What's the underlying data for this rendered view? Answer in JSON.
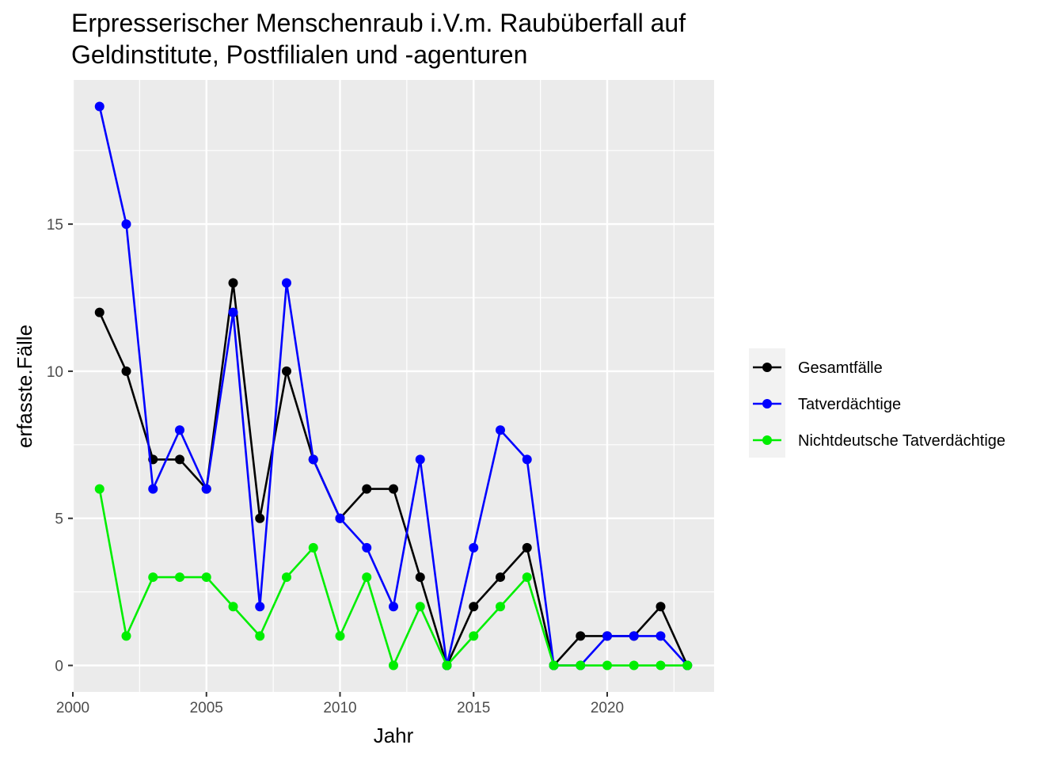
{
  "chart_data": {
    "type": "line",
    "title_lines": [
      "Erpresserischer Menschenraub i.V.m. Raubüberfall auf",
      "Geldinstitute, Postfilialen und -agenturen"
    ],
    "xlabel": "Jahr",
    "ylabel": "erfasste.Fälle",
    "x": [
      2001,
      2002,
      2003,
      2004,
      2005,
      2006,
      2007,
      2008,
      2009,
      2010,
      2011,
      2012,
      2013,
      2014,
      2015,
      2016,
      2017,
      2018,
      2019,
      2020,
      2021,
      2022,
      2023
    ],
    "series": [
      {
        "name": "Gesamtfälle",
        "color": "#000000",
        "values": [
          12,
          10,
          7,
          7,
          6,
          13,
          5,
          10,
          7,
          5,
          6,
          6,
          3,
          0,
          2,
          3,
          4,
          0,
          1,
          1,
          1,
          2,
          0
        ]
      },
      {
        "name": "Tatverdächtige",
        "color": "#0000ff",
        "values": [
          19,
          15,
          6,
          8,
          6,
          12,
          2,
          13,
          7,
          5,
          4,
          2,
          7,
          0,
          4,
          8,
          7,
          0,
          0,
          1,
          1,
          1,
          0
        ]
      },
      {
        "name": "Nichtdeutsche Tatverdächtige",
        "color": "#00ee00",
        "values": [
          6,
          1,
          3,
          3,
          3,
          2,
          1,
          3,
          4,
          1,
          3,
          0,
          2,
          0,
          1,
          2,
          3,
          0,
          0,
          0,
          0,
          0,
          0
        ]
      }
    ],
    "xlim": [
      2000,
      2024
    ],
    "ylim": [
      -0.9,
      19.9
    ],
    "x_ticks": [
      2000,
      2005,
      2010,
      2015,
      2020
    ],
    "x_tick_labels": [
      "2000",
      "2005",
      "2010",
      "2015",
      "2020"
    ],
    "y_ticks": [
      0,
      5,
      10,
      15
    ],
    "y_tick_labels": [
      "0",
      "5",
      "10",
      "15"
    ],
    "grid": true,
    "legend_position": "right",
    "panel_background": "#ebebeb",
    "grid_color": "#ffffff"
  }
}
